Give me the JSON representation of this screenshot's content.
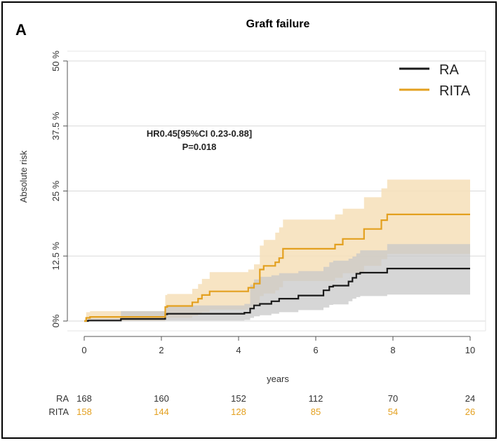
{
  "panel_letter": "A",
  "colors": {
    "RA": "#1a1a1a",
    "RITA": "#e3a01f",
    "RA_band": "#c8c8c8",
    "RITA_band": "#f6dfb8",
    "grid": "#d9d9d9"
  },
  "chart_data": {
    "type": "line",
    "step": true,
    "title": "Graft failure",
    "xlabel": "years",
    "ylabel": "Absolute risk",
    "xlim": [
      0,
      10
    ],
    "ylim": [
      0,
      50
    ],
    "x_ticks": [
      0,
      2,
      4,
      6,
      8,
      10
    ],
    "y_ticks": [
      0,
      12.5,
      25,
      37.5,
      50
    ],
    "y_tick_labels": [
      "0%",
      "12.5 %",
      "25 %",
      "37.5 %",
      "50 %"
    ],
    "grid": true,
    "legend_position": "top-right",
    "annotation": [
      "HR0.45[95%CI 0.23-0.88]",
      "P=0.018"
    ],
    "series": [
      {
        "name": "RA",
        "x": [
          0,
          0.1,
          0.95,
          2.1,
          2.15,
          4.15,
          4.3,
          4.4,
          4.55,
          4.85,
          5.05,
          5.55,
          6.2,
          6.35,
          6.45,
          6.85,
          6.95,
          7.05,
          7.15,
          7.85,
          10
        ],
        "y": [
          0,
          0.1,
          0.4,
          1.3,
          1.4,
          1.6,
          2.4,
          3.0,
          3.3,
          3.8,
          4.3,
          4.9,
          5.9,
          6.6,
          6.8,
          7.6,
          8.3,
          9.1,
          9.3,
          10.1,
          10.1
        ],
        "ci_lower": [
          0,
          0,
          0,
          0.1,
          0.1,
          0.2,
          0.6,
          0.9,
          1.1,
          1.4,
          1.7,
          2.1,
          2.6,
          3.1,
          3.2,
          3.8,
          4.3,
          4.6,
          4.8,
          5.1,
          5.1
        ],
        "ci_upper": [
          0,
          0.5,
          1.9,
          2.9,
          3.0,
          3.3,
          7.0,
          8.0,
          8.5,
          8.8,
          9.2,
          9.6,
          10.4,
          11.3,
          11.6,
          12.0,
          12.4,
          13.0,
          13.6,
          14.8,
          14.8
        ]
      },
      {
        "name": "RITA",
        "x": [
          0,
          0.05,
          0.15,
          2.1,
          2.15,
          2.8,
          2.95,
          3.05,
          3.25,
          4.25,
          4.4,
          4.55,
          4.65,
          4.95,
          5.05,
          5.15,
          6.5,
          6.7,
          7.25,
          7.7,
          7.85,
          10
        ],
        "y": [
          0,
          0.6,
          0.8,
          2.7,
          2.9,
          3.6,
          4.3,
          5.0,
          5.7,
          6.4,
          7.2,
          9.9,
          10.6,
          11.3,
          12.1,
          13.9,
          14.7,
          15.8,
          17.7,
          19.4,
          20.5,
          20.5
        ],
        "ci_lower": [
          0,
          0,
          0,
          0.5,
          0.6,
          1.0,
          1.4,
          1.7,
          2.2,
          2.6,
          3.1,
          4.8,
          5.3,
          5.9,
          6.5,
          7.7,
          8.3,
          9.2,
          10.6,
          11.9,
          12.9,
          12.9
        ],
        "ci_upper": [
          0,
          1.7,
          1.9,
          5.0,
          5.2,
          6.2,
          7.1,
          8.1,
          9.4,
          9.9,
          10.9,
          14.5,
          15.6,
          17.0,
          18.0,
          19.5,
          20.5,
          21.6,
          23.8,
          25.5,
          27.2,
          27.2
        ]
      }
    ]
  },
  "risk_table": {
    "rows": [
      {
        "label": "RA",
        "values": [
          "168",
          "160",
          "152",
          "112",
          "70",
          "24"
        ]
      },
      {
        "label": "RITA",
        "values": [
          "158",
          "144",
          "128",
          "85",
          "54",
          "26"
        ]
      }
    ]
  }
}
